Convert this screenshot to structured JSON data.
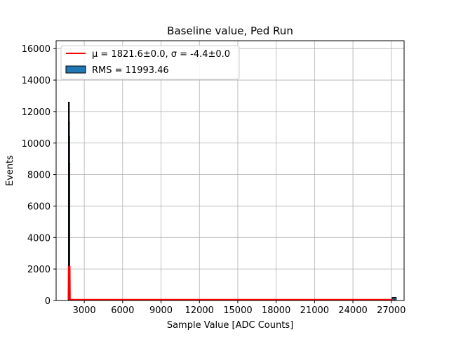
{
  "chart_data": {
    "type": "bar",
    "title": "Baseline value, Ped Run",
    "xlabel": "Sample Value [ADC Counts]",
    "ylabel": "Events",
    "xlim": [
      800,
      28000
    ],
    "ylim": [
      0,
      16500
    ],
    "xticks": [
      3000,
      6000,
      9000,
      12000,
      15000,
      18000,
      21000,
      24000,
      27000
    ],
    "yticks": [
      0,
      2000,
      4000,
      6000,
      8000,
      10000,
      12000,
      14000,
      16000
    ],
    "grid": true,
    "legend_position": "top-left",
    "histogram_color": "#1f77b4",
    "fit_color": "#ff0000",
    "histogram": [
      {
        "x": 1800,
        "count": 12600
      },
      {
        "x": 1810,
        "count": 11300
      },
      {
        "x": 1820,
        "count": 10400
      },
      {
        "x": 1830,
        "count": 8700
      },
      {
        "x": 1840,
        "count": 2000
      },
      {
        "x": 27150,
        "count": 200
      },
      {
        "x": 27300,
        "count": 200
      }
    ],
    "fit": {
      "peak_x": 1821.6,
      "peak_height": 2150,
      "baseline": 0,
      "x_end": 27100
    },
    "legend": [
      {
        "kind": "line",
        "label": "μ = 1821.6±0.0, σ = -4.4±0.0"
      },
      {
        "kind": "patch",
        "label": "RMS = 11993.46"
      }
    ]
  }
}
